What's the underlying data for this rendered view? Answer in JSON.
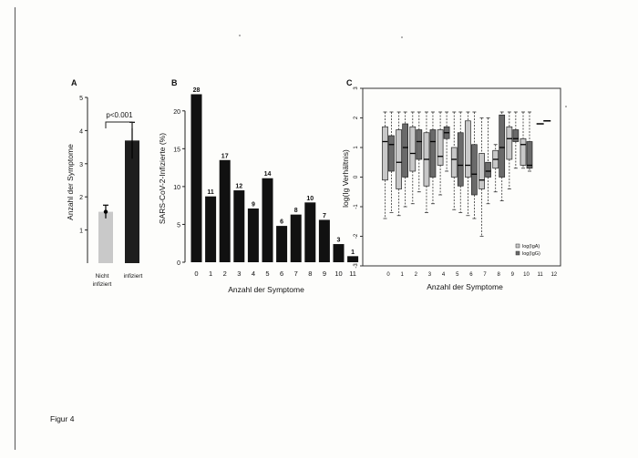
{
  "figure_caption": "Figur 4",
  "chart_data": [
    {
      "panel": "A",
      "type": "bar",
      "ylabel": "Anzahl der Symptome",
      "ylim": [
        0,
        5
      ],
      "yticks": [
        "1",
        "2",
        "3",
        "4",
        "5"
      ],
      "categories": [
        [
          "Nicht",
          "infiziert"
        ],
        [
          "infiziert"
        ]
      ],
      "values": [
        1.55,
        3.7
      ],
      "errors": [
        0.2,
        0.55
      ],
      "bar_colors": [
        "#c9c9c9",
        "#1e1e1e"
      ],
      "annotation": "p<0.001"
    },
    {
      "panel": "B",
      "type": "bar",
      "xlabel": "Anzahl der Symptome",
      "ylabel": "SARS-CoV-2-Infizierte (%)",
      "ylim": [
        0,
        22.5
      ],
      "yticks": [
        "0",
        "5",
        "10",
        "15",
        "20"
      ],
      "categories": [
        "0",
        "1",
        "2",
        "3",
        "4",
        "5",
        "6",
        "7",
        "8",
        "9",
        "10",
        "11"
      ],
      "values": [
        22.2,
        8.7,
        13.5,
        9.5,
        7.1,
        11.1,
        4.8,
        6.3,
        7.9,
        5.6,
        2.4,
        0.8
      ],
      "data_labels": [
        "28",
        "11",
        "17",
        "12",
        "9",
        "14",
        "6",
        "8",
        "10",
        "7",
        "3",
        "1"
      ],
      "bar_color": "#111111"
    },
    {
      "panel": "C",
      "type": "box",
      "xlabel": "Anzahl der Symptome",
      "ylabel": "log(Ig Verhältnis)",
      "ylim": [
        -3,
        3
      ],
      "yticks": [
        "-3",
        "-2",
        "-1",
        "0",
        "1",
        "2",
        "3"
      ],
      "categories": [
        "0",
        "1",
        "2",
        "3",
        "4",
        "5",
        "6",
        "7",
        "8",
        "9",
        "10",
        "11",
        "12"
      ],
      "legend": [
        "log(IgA)",
        "log(IgG)"
      ],
      "legend_position": "bottom-right",
      "series_colors": [
        "#c8c8c8",
        "#6a6a6a"
      ],
      "boxes": [
        {
          "x": 0,
          "series": 0,
          "q1": -0.1,
          "median": 1.2,
          "q3": 1.7,
          "lo": -1.4,
          "hi": 2.2
        },
        {
          "x": 0,
          "series": 1,
          "q1": 0.2,
          "median": 1.1,
          "q3": 1.4,
          "lo": -1.2,
          "hi": 2.2
        },
        {
          "x": 1,
          "series": 0,
          "q1": -0.4,
          "median": 0.5,
          "q3": 1.6,
          "lo": -1.3,
          "hi": 2.2
        },
        {
          "x": 1,
          "series": 1,
          "q1": 0.0,
          "median": 1.0,
          "q3": 1.8,
          "lo": -1.0,
          "hi": 2.2
        },
        {
          "x": 2,
          "series": 0,
          "q1": 0.2,
          "median": 0.8,
          "q3": 1.7,
          "lo": -0.9,
          "hi": 2.2
        },
        {
          "x": 2,
          "series": 1,
          "q1": 0.6,
          "median": 1.2,
          "q3": 1.6,
          "lo": -0.5,
          "hi": 2.2
        },
        {
          "x": 3,
          "series": 0,
          "q1": -0.3,
          "median": 0.6,
          "q3": 1.5,
          "lo": -1.2,
          "hi": 2.2
        },
        {
          "x": 3,
          "series": 1,
          "q1": 0.0,
          "median": 1.2,
          "q3": 1.6,
          "lo": -0.9,
          "hi": 2.2
        },
        {
          "x": 4,
          "series": 0,
          "q1": 0.4,
          "median": 0.7,
          "q3": 1.6,
          "lo": -0.6,
          "hi": 2.2
        },
        {
          "x": 4,
          "series": 1,
          "q1": 1.3,
          "median": 1.5,
          "q3": 1.7,
          "lo": 0.2,
          "hi": 2.2
        },
        {
          "x": 5,
          "series": 0,
          "q1": 0.0,
          "median": 0.6,
          "q3": 1.0,
          "lo": -1.1,
          "hi": 2.2
        },
        {
          "x": 5,
          "series": 1,
          "q1": -0.3,
          "median": 0.4,
          "q3": 1.5,
          "lo": -1.2,
          "hi": 2.2
        },
        {
          "x": 6,
          "series": 0,
          "q1": 0.0,
          "median": 0.4,
          "q3": 1.9,
          "lo": -1.3,
          "hi": 2.2
        },
        {
          "x": 6,
          "series": 1,
          "q1": -0.6,
          "median": 0.1,
          "q3": 1.1,
          "lo": -1.4,
          "hi": 2.2
        },
        {
          "x": 7,
          "series": 0,
          "q1": -0.4,
          "median": -0.1,
          "q3": 0.8,
          "lo": -2.0,
          "hi": 2.0
        },
        {
          "x": 7,
          "series": 1,
          "q1": 0.0,
          "median": 0.2,
          "q3": 0.5,
          "lo": -0.9,
          "hi": 2.0
        },
        {
          "x": 8,
          "series": 0,
          "q1": 0.3,
          "median": 0.6,
          "q3": 0.9,
          "lo": -0.5,
          "hi": 1.1
        },
        {
          "x": 8,
          "series": 1,
          "q1": 0.0,
          "median": 1.0,
          "q3": 2.1,
          "lo": -0.8,
          "hi": 2.2
        },
        {
          "x": 9,
          "series": 0,
          "q1": 0.6,
          "median": 1.3,
          "q3": 1.7,
          "lo": -0.4,
          "hi": 2.2
        },
        {
          "x": 9,
          "series": 1,
          "q1": 1.2,
          "median": 1.3,
          "q3": 1.6,
          "lo": 0.3,
          "hi": 2.2
        },
        {
          "x": 10,
          "series": 0,
          "q1": 0.4,
          "median": 1.1,
          "q3": 1.3,
          "lo": 0.3,
          "hi": 2.2
        },
        {
          "x": 10,
          "series": 1,
          "q1": 0.3,
          "median": 0.4,
          "q3": 1.2,
          "lo": 0.2,
          "hi": 2.2
        }
      ],
      "medians_only": [
        {
          "x": 11,
          "series": 0,
          "median": 1.8
        },
        {
          "x": 11.5,
          "series": 1,
          "median": 1.9
        }
      ]
    }
  ]
}
